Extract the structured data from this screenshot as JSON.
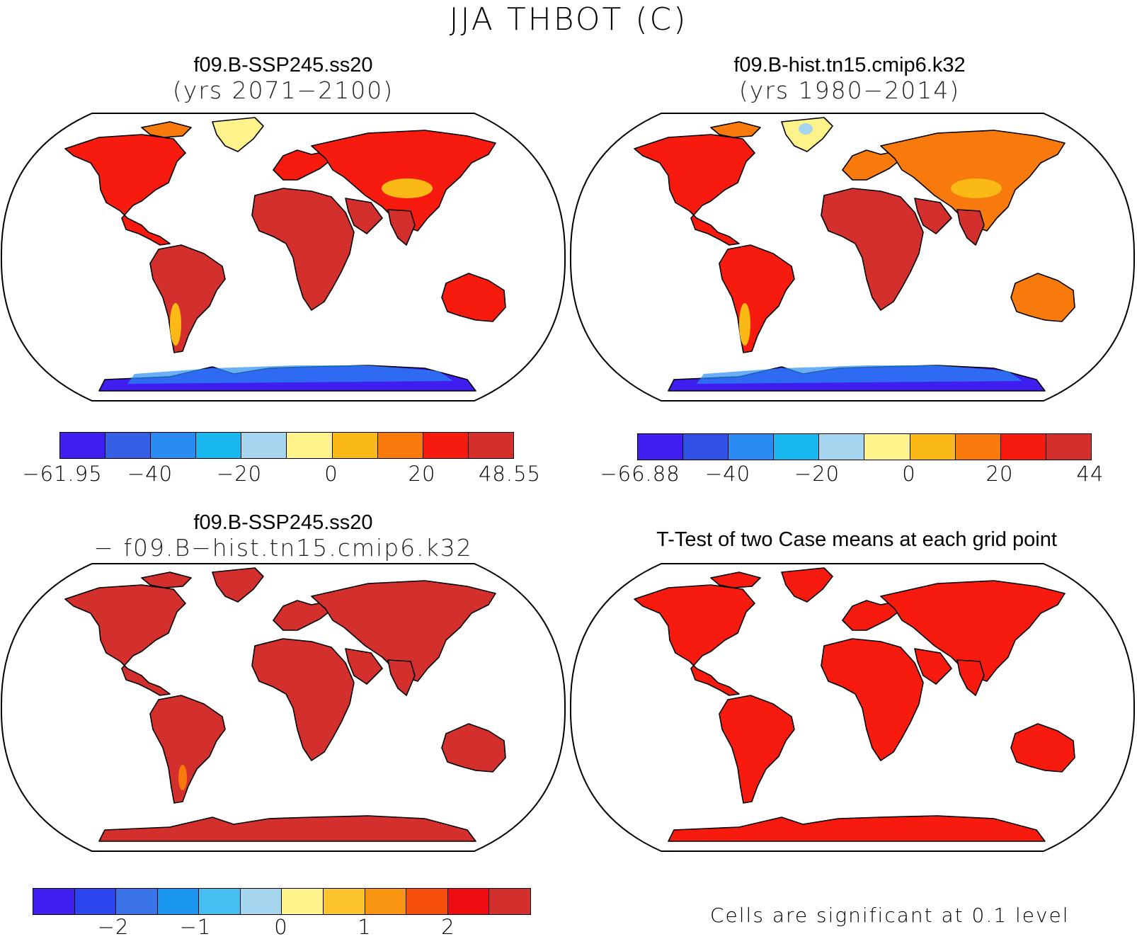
{
  "title": "JJA THBOT (C)",
  "panels": [
    {
      "title_line1": "f09.B-SSP245.ss20",
      "title_line2": "(yrs 2071−2100)",
      "colorbar": {
        "colors": [
          "#3f1ff0",
          "#3560e6",
          "#2a8cf2",
          "#19b8f0",
          "#a5d5ef",
          "#fef28a",
          "#fbb915",
          "#f97a0c",
          "#f61a0f",
          "#d3302d"
        ],
        "ticks": [
          "−61.95",
          "−40",
          "−20",
          "0",
          "20",
          "48.55"
        ]
      }
    },
    {
      "title_line1": "f09.B-hist.tn15.cmip6.k32",
      "title_line2": "(yrs 1980−2014)",
      "colorbar": {
        "colors": [
          "#3f1ff0",
          "#3050e6",
          "#2a8cf2",
          "#19b8f0",
          "#a5d5ef",
          "#fef28a",
          "#fbb915",
          "#f97a0c",
          "#f61a0f",
          "#d3302d"
        ],
        "ticks": [
          "−66.88",
          "−40",
          "−20",
          "0",
          "20",
          "44"
        ]
      }
    },
    {
      "title_line1": "f09.B-SSP245.ss20",
      "title_line2": "− f09.B−hist.tn15.cmip6.k32",
      "colorbar": {
        "colors": [
          "#3f1ff0",
          "#2a45ee",
          "#3a74e8",
          "#1a96f0",
          "#45bff2",
          "#a5d5ef",
          "#fef28a",
          "#fbc42a",
          "#f99511",
          "#f64f0c",
          "#ec0c12",
          "#d3302d"
        ],
        "ticks": [
          "−2",
          "−1",
          "0",
          "1",
          "2"
        ]
      }
    },
    {
      "title_line1": "T-Test of two Case means at each grid point",
      "note": "Cells are significant at 0.1 level"
    }
  ],
  "map_colors": {
    "ocean": "#ffffff",
    "land_warm": "#f61a0f",
    "land_hot": "#d3302d",
    "land_mild": "#f97a0c",
    "land_cool": "#fbb915",
    "ice_sheet": "#fef28a",
    "antarctica_cold": "#3f1ff0",
    "antarctica_mid": "#2a8cf2",
    "significant": "#f61a0f",
    "coast": "#000000"
  }
}
